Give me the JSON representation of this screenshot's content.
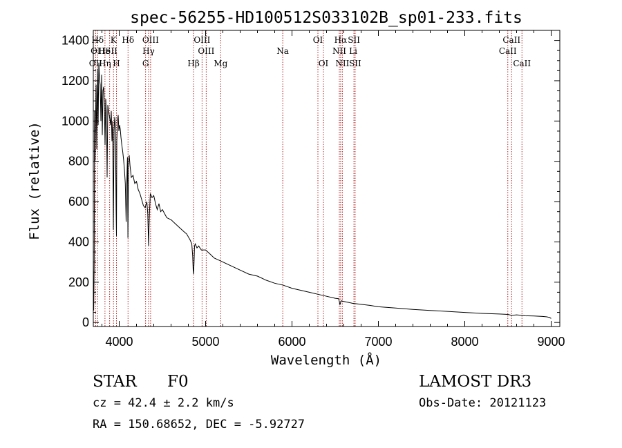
{
  "chart_data": {
    "type": "line",
    "title": "spec-56255-HD100512S033102B_sp01-233.fits",
    "xlabel": "Wavelength (Å)",
    "ylabel": "Flux (relative)",
    "xlim": [
      3700,
      9100
    ],
    "ylim": [
      -20,
      1450
    ],
    "xticks": [
      4000,
      5000,
      6000,
      7000,
      8000,
      9000
    ],
    "yticks": [
      0,
      200,
      400,
      600,
      800,
      1000,
      1200,
      1400
    ],
    "series": [
      {
        "name": "flux",
        "x": [
          3705,
          3710,
          3715,
          3720,
          3725,
          3732,
          3740,
          3748,
          3756,
          3764,
          3772,
          3780,
          3788,
          3796,
          3804,
          3812,
          3820,
          3828,
          3836,
          3844,
          3852,
          3860,
          3868,
          3876,
          3884,
          3892,
          3900,
          3908,
          3916,
          3924,
          3932,
          3940,
          3948,
          3956,
          3964,
          3968,
          3972,
          3980,
          3988,
          3996,
          4004,
          4012,
          4020,
          4030,
          4040,
          4050,
          4060,
          4070,
          4080,
          4090,
          4095,
          4101,
          4108,
          4116,
          4125,
          4140,
          4160,
          4180,
          4200,
          4220,
          4240,
          4260,
          4280,
          4300,
          4320,
          4330,
          4340,
          4345,
          4352,
          4360,
          4380,
          4400,
          4420,
          4440,
          4460,
          4480,
          4500,
          4550,
          4600,
          4650,
          4700,
          4750,
          4780,
          4820,
          4840,
          4850,
          4856,
          4861,
          4866,
          4872,
          4880,
          4900,
          4920,
          4950,
          5000,
          5050,
          5100,
          5150,
          5200,
          5300,
          5400,
          5500,
          5600,
          5700,
          5800,
          5900,
          6000,
          6100,
          6200,
          6300,
          6400,
          6500,
          6540,
          6555,
          6563,
          6570,
          6590,
          6650,
          6700,
          6800,
          6900,
          7000,
          7200,
          7400,
          7600,
          7800,
          8000,
          8200,
          8400,
          8500,
          8542,
          8600,
          8662,
          8700,
          8800,
          8900,
          8950,
          8980,
          9000
        ],
        "values": [
          60,
          300,
          1050,
          800,
          960,
          1180,
          860,
          1260,
          980,
          1290,
          1210,
          1180,
          1000,
          1230,
          930,
          1150,
          1170,
          1090,
          880,
          1110,
          1020,
          720,
          1080,
          1050,
          1030,
          1010,
          980,
          1050,
          900,
          1000,
          460,
          950,
          1020,
          980,
          560,
          430,
          900,
          1000,
          1030,
          950,
          980,
          960,
          920,
          880,
          850,
          810,
          760,
          690,
          500,
          740,
          820,
          420,
          780,
          830,
          780,
          720,
          730,
          690,
          700,
          660,
          640,
          610,
          580,
          570,
          600,
          540,
          380,
          470,
          560,
          640,
          620,
          630,
          590,
          560,
          590,
          550,
          560,
          520,
          510,
          490,
          470,
          450,
          440,
          410,
          390,
          330,
          260,
          240,
          300,
          380,
          390,
          370,
          380,
          360,
          360,
          340,
          320,
          310,
          300,
          280,
          260,
          240,
          230,
          210,
          195,
          185,
          170,
          160,
          150,
          140,
          130,
          120,
          118,
          90,
          100,
          108,
          105,
          100,
          95,
          90,
          85,
          78,
          72,
          65,
          60,
          55,
          50,
          45,
          42,
          40,
          35,
          38,
          35,
          33,
          32,
          30,
          28,
          25,
          20
        ]
      }
    ],
    "lines": [
      {
        "label": "Hδ",
        "wl": 3750,
        "row": 1
      },
      {
        "label": "K",
        "wl": 3934,
        "row": 1
      },
      {
        "label": "Hδ",
        "wl": 4102,
        "row": 1
      },
      {
        "label": "OIII",
        "wl": 4363,
        "row": 1
      },
      {
        "label": "OIII",
        "wl": 4959,
        "row": 1
      },
      {
        "label": "OI",
        "wl": 6300,
        "row": 1
      },
      {
        "label": "Hα",
        "wl": 6563,
        "row": 1
      },
      {
        "label": "SII",
        "wl": 6717,
        "row": 1
      },
      {
        "label": "CaII",
        "wl": 8542,
        "row": 1
      },
      {
        "label": "OI",
        "wl": 3727,
        "row": 2
      },
      {
        "label": "He",
        "wl": 3830,
        "row": 2
      },
      {
        "label": "ISII",
        "wl": 3889,
        "row": 2
      },
      {
        "label": "Hγ",
        "wl": 4340,
        "row": 2
      },
      {
        "label": "OIII",
        "wl": 5007,
        "row": 2
      },
      {
        "label": "Na",
        "wl": 5893,
        "row": 2
      },
      {
        "label": "NII",
        "wl": 6548,
        "row": 2
      },
      {
        "label": "Li",
        "wl": 6708,
        "row": 2
      },
      {
        "label": "CaII",
        "wl": 8498,
        "row": 2
      },
      {
        "label": "OII",
        "wl": 3727,
        "row": 3
      },
      {
        "label": "Hη",
        "wl": 3835,
        "row": 3
      },
      {
        "label": "H",
        "wl": 3968,
        "row": 3
      },
      {
        "label": "G",
        "wl": 4305,
        "row": 3
      },
      {
        "label": "Hβ",
        "wl": 4861,
        "row": 3
      },
      {
        "label": "Mg",
        "wl": 5175,
        "row": 3
      },
      {
        "label": "OI",
        "wl": 6364,
        "row": 3
      },
      {
        "label": "NII",
        "wl": 6583,
        "row": 3
      },
      {
        "label": "SII",
        "wl": 6731,
        "row": 3
      },
      {
        "label": "CaII",
        "wl": 8662,
        "row": 3
      }
    ],
    "marker_lines_wl": [
      3727,
      3750,
      3835,
      3889,
      3934,
      3968,
      4102,
      4305,
      4340,
      4363,
      4861,
      4959,
      5007,
      5175,
      5893,
      6300,
      6364,
      6548,
      6563,
      6583,
      6717,
      6731,
      8498,
      8542,
      8662
    ]
  },
  "info": {
    "object_class": "STAR",
    "subclass": "F0",
    "survey": "LAMOST DR3",
    "redshift": "cz = 42.4 ± 2.2 km/s",
    "obs_date": "Obs-Date: 20121123",
    "coords": "RA = 150.68652, DEC =  -5.92727"
  },
  "colors": {
    "spectrum": "#000000",
    "marker_lines": "#b22222",
    "axes": "#000000"
  }
}
